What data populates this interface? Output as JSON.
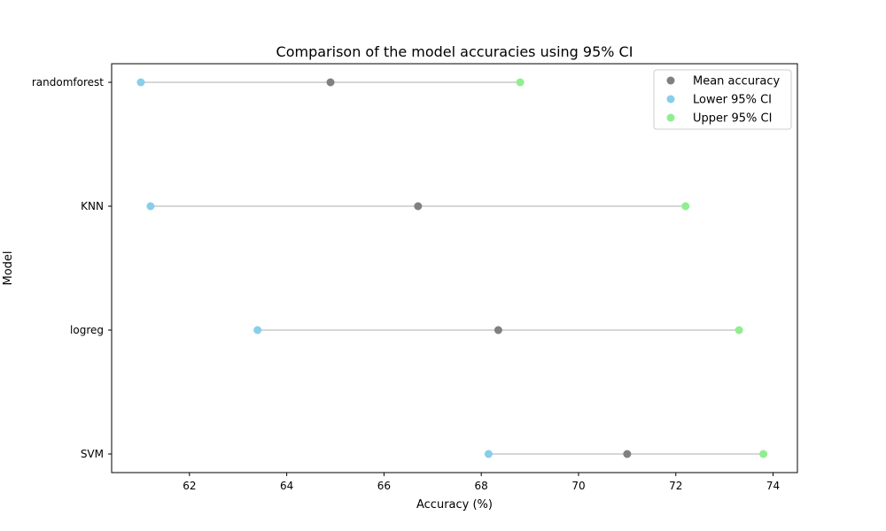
{
  "chart_data": {
    "type": "scatter",
    "title": "Comparison of the model accuracies using 95% CI",
    "xlabel": "Accuracy (%)",
    "ylabel": "Model",
    "categories": [
      "randomforest",
      "KNN",
      "logreg",
      "SVM"
    ],
    "xlim": [
      60.4,
      74.5
    ],
    "xticks": [
      62,
      64,
      66,
      68,
      70,
      72,
      74
    ],
    "grid": false,
    "legend_position": "top-right",
    "series": [
      {
        "name": "Mean accuracy",
        "color": "#808080",
        "values": [
          64.9,
          66.7,
          68.35,
          71.0
        ]
      },
      {
        "name": "Lower 95% CI",
        "color": "#87ceeb",
        "values": [
          61.0,
          61.2,
          63.4,
          68.15
        ]
      },
      {
        "name": "Upper 95% CI",
        "color": "#90ee90",
        "values": [
          68.8,
          72.2,
          73.3,
          73.8
        ]
      }
    ],
    "connector_color": "#c8c8c8"
  }
}
